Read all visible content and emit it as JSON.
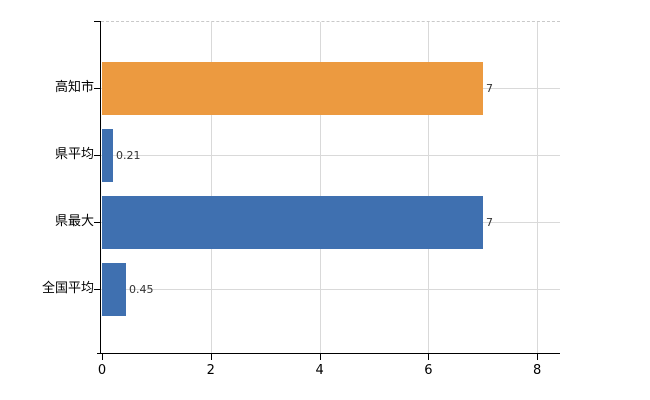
{
  "chart_data": {
    "type": "bar",
    "orientation": "horizontal",
    "title": "",
    "xlabel": "",
    "ylabel": "",
    "categories": [
      "高知市",
      "県平均",
      "県最大",
      "全国平均"
    ],
    "values": [
      7,
      0.21,
      7,
      0.45
    ],
    "value_labels": [
      "7",
      "0.21",
      "7",
      "0.45"
    ],
    "bar_colors": [
      "#EC9A40",
      "#3F70B0",
      "#3F70B0",
      "#3F70B0"
    ],
    "xlim": [
      0,
      8
    ],
    "x_ticks": [
      0,
      2,
      4,
      6,
      8
    ],
    "x_tick_labels": [
      "0",
      "2",
      "4",
      "6",
      "8"
    ],
    "grid": true,
    "legend": false,
    "colors": {
      "orange_series": "#EC9A40",
      "blue_series": "#3F70B0",
      "gridline": "#D9D9D9",
      "axis": "#000000",
      "value_text": "#333333",
      "background": "#FFFFFF"
    }
  }
}
